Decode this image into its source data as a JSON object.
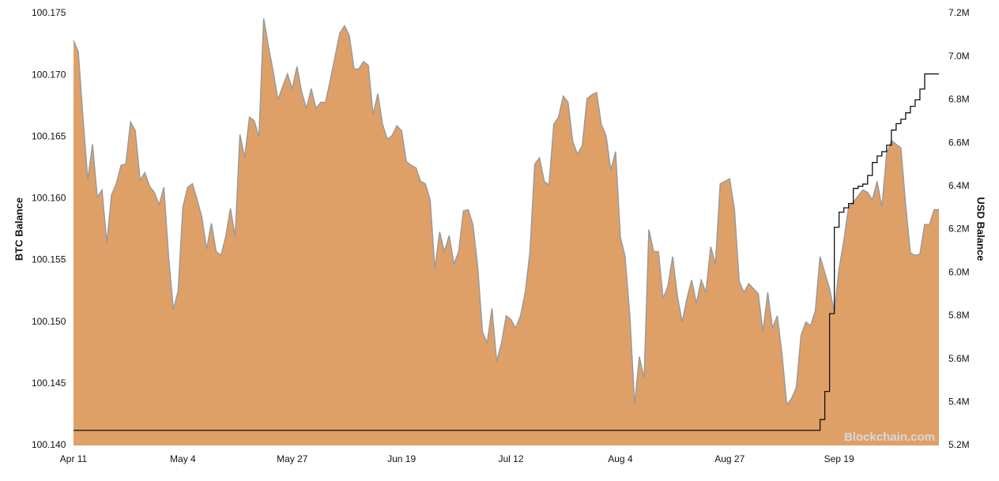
{
  "chart_data": {
    "type": "area",
    "y_label": "BTC Balance",
    "y2_label": "USD Balance",
    "watermark": "Blockchain.com",
    "categories": [
      "Apr 11",
      null,
      null,
      null,
      null,
      null,
      null,
      null,
      null,
      null,
      null,
      null,
      null,
      null,
      null,
      null,
      null,
      null,
      null,
      null,
      null,
      null,
      null,
      "May 4",
      null,
      null,
      null,
      null,
      null,
      null,
      null,
      null,
      null,
      null,
      null,
      null,
      null,
      null,
      null,
      null,
      null,
      null,
      null,
      null,
      null,
      null,
      "May 27",
      null,
      null,
      null,
      null,
      null,
      null,
      null,
      null,
      null,
      null,
      null,
      null,
      null,
      null,
      null,
      null,
      null,
      null,
      null,
      null,
      null,
      null,
      "Jun 19",
      null,
      null,
      null,
      null,
      null,
      null,
      null,
      null,
      null,
      null,
      null,
      null,
      null,
      null,
      null,
      null,
      null,
      null,
      null,
      null,
      null,
      null,
      "Jul 12",
      null,
      null,
      null,
      null,
      null,
      null,
      null,
      null,
      null,
      null,
      null,
      null,
      null,
      null,
      null,
      null,
      null,
      null,
      null,
      null,
      null,
      null,
      "Aug 4",
      null,
      null,
      null,
      null,
      null,
      null,
      null,
      null,
      null,
      null,
      null,
      null,
      null,
      null,
      null,
      null,
      null,
      null,
      null,
      null,
      null,
      null,
      "Aug 27",
      null,
      null,
      null,
      null,
      null,
      null,
      null,
      null,
      null,
      null,
      null,
      null,
      null,
      null,
      null,
      null,
      null,
      null,
      null,
      null,
      null,
      null,
      "Sep 19",
      null,
      null,
      null,
      null,
      null,
      null,
      null,
      null,
      null,
      null,
      null,
      null,
      null,
      null,
      null,
      null,
      null,
      null,
      null,
      null,
      null
    ],
    "series": [
      {
        "name": "BTC Balance",
        "kind": "area",
        "color": "#dfa068",
        "line_color": "#9a9a9a",
        "values": [
          100.1728,
          100.1719,
          100.1665,
          100.1615,
          100.1644,
          100.1601,
          100.1607,
          100.1564,
          100.1603,
          100.1612,
          100.1627,
          100.1628,
          100.1662,
          100.1655,
          100.1615,
          100.1621,
          100.161,
          100.1605,
          100.1595,
          100.1609,
          100.1553,
          100.151,
          100.1525,
          100.1593,
          100.1609,
          100.1612,
          100.1599,
          100.1585,
          100.1559,
          100.158,
          100.1557,
          100.1554,
          100.1569,
          100.1592,
          100.1569,
          100.1652,
          100.1633,
          100.1666,
          100.1663,
          100.165,
          100.1746,
          100.1723,
          100.1703,
          100.168,
          100.1691,
          100.1701,
          100.1689,
          100.1707,
          100.1686,
          100.1673,
          100.1689,
          100.1673,
          100.1678,
          100.1678,
          100.1696,
          100.1715,
          100.1734,
          100.174,
          100.1732,
          100.1705,
          100.1705,
          100.1711,
          100.1708,
          100.1668,
          100.1685,
          100.166,
          100.1648,
          100.1651,
          100.1659,
          100.1655,
          100.163,
          100.1627,
          100.1625,
          100.1614,
          100.1612,
          100.1599,
          100.1543,
          100.1573,
          100.1557,
          100.157,
          100.1547,
          100.1557,
          100.159,
          100.1591,
          100.1579,
          100.1545,
          100.1492,
          100.1483,
          100.1511,
          100.1468,
          100.1483,
          100.1505,
          100.1502,
          100.1495,
          100.1505,
          100.1524,
          100.1557,
          100.1628,
          100.1633,
          100.1614,
          100.1611,
          100.166,
          100.1666,
          100.1683,
          100.1678,
          100.1646,
          100.1636,
          100.1643,
          100.1681,
          100.1684,
          100.1686,
          100.166,
          100.1651,
          100.1623,
          100.1638,
          100.1569,
          100.1553,
          100.1505,
          100.1433,
          100.1472,
          100.1454,
          100.1575,
          100.1557,
          100.1557,
          100.1519,
          100.1529,
          100.1553,
          100.1521,
          100.15,
          100.1519,
          100.1534,
          100.1515,
          100.1534,
          100.1524,
          100.1561,
          100.1547,
          100.1612,
          100.1614,
          100.1616,
          100.1591,
          100.1533,
          100.1524,
          100.1531,
          100.1527,
          100.1523,
          100.1492,
          100.1524,
          100.1495,
          100.1505,
          100.1474,
          100.1433,
          100.1438,
          100.1447,
          100.1489,
          100.15,
          100.1497,
          100.1509,
          100.1553,
          100.154,
          100.1527,
          100.1508,
          100.1543,
          100.1566,
          100.1593,
          100.1597,
          100.1602,
          100.1607,
          100.1605,
          100.1599,
          100.1614,
          100.1593,
          100.1636,
          100.1647,
          100.1644,
          100.1641,
          100.1595,
          100.1556,
          100.1554,
          100.1555,
          100.1579,
          100.1579,
          100.1591,
          100.1591
        ]
      },
      {
        "name": "USD Balance",
        "kind": "step",
        "axis": "y2",
        "color": "#111111",
        "values": [
          5270000,
          5270000,
          5270000,
          5270000,
          5270000,
          5270000,
          5270000,
          5270000,
          5270000,
          5270000,
          5270000,
          5270000,
          5270000,
          5270000,
          5270000,
          5270000,
          5270000,
          5270000,
          5270000,
          5270000,
          5270000,
          5270000,
          5270000,
          5270000,
          5270000,
          5270000,
          5270000,
          5270000,
          5270000,
          5270000,
          5270000,
          5270000,
          5270000,
          5270000,
          5270000,
          5270000,
          5270000,
          5270000,
          5270000,
          5270000,
          5270000,
          5270000,
          5270000,
          5270000,
          5270000,
          5270000,
          5270000,
          5270000,
          5270000,
          5270000,
          5270000,
          5270000,
          5270000,
          5270000,
          5270000,
          5270000,
          5270000,
          5270000,
          5270000,
          5270000,
          5270000,
          5270000,
          5270000,
          5270000,
          5270000,
          5270000,
          5270000,
          5270000,
          5270000,
          5270000,
          5270000,
          5270000,
          5270000,
          5270000,
          5270000,
          5270000,
          5270000,
          5270000,
          5270000,
          5270000,
          5270000,
          5270000,
          5270000,
          5270000,
          5270000,
          5270000,
          5270000,
          5270000,
          5270000,
          5270000,
          5270000,
          5270000,
          5270000,
          5270000,
          5270000,
          5270000,
          5270000,
          5270000,
          5270000,
          5270000,
          5270000,
          5270000,
          5270000,
          5270000,
          5270000,
          5270000,
          5270000,
          5270000,
          5270000,
          5270000,
          5270000,
          5270000,
          5270000,
          5270000,
          5270000,
          5270000,
          5270000,
          5270000,
          5270000,
          5270000,
          5270000,
          5270000,
          5270000,
          5270000,
          5270000,
          5270000,
          5270000,
          5270000,
          5270000,
          5270000,
          5270000,
          5270000,
          5270000,
          5270000,
          5270000,
          5270000,
          5270000,
          5270000,
          5270000,
          5270000,
          5270000,
          5270000,
          5270000,
          5270000,
          5270000,
          5270000,
          5270000,
          5270000,
          5270000,
          5270000,
          5270000,
          5270000,
          5270000,
          5270000,
          5270000,
          5270000,
          5270000,
          5320000,
          5450000,
          5810000,
          6210000,
          6280000,
          6300000,
          6320000,
          6390000,
          6400000,
          6410000,
          6450000,
          6510000,
          6540000,
          6560000,
          6590000,
          6660000,
          6690000,
          6710000,
          6740000,
          6770000,
          6800000,
          6850000,
          6920000,
          6920000,
          6920000,
          6920000
        ]
      }
    ],
    "ylim": [
      100.14,
      100.175
    ],
    "yticks": [
      {
        "value": 100.14,
        "label": "100.140"
      },
      100.145,
      {
        "value": 100.15,
        "label": "100.150"
      },
      100.155,
      {
        "value": 100.16,
        "label": "100.160"
      },
      100.165,
      {
        "value": 100.17,
        "label": "100.170"
      },
      100.175
    ],
    "y2lim": [
      5200000,
      7200000
    ],
    "y2ticks": [
      {
        "value": 5200000,
        "label": "5.2M"
      },
      {
        "value": 5400000,
        "label": "5.4M"
      },
      {
        "value": 5600000,
        "label": "5.6M"
      },
      {
        "value": 5800000,
        "label": "5.8M"
      },
      {
        "value": 6000000,
        "label": "6.0M"
      },
      {
        "value": 6200000,
        "label": "6.2M"
      },
      {
        "value": 6400000,
        "label": "6.4M"
      },
      {
        "value": 6600000,
        "label": "6.6M"
      },
      {
        "value": 6800000,
        "label": "6.8M"
      },
      {
        "value": 7000000,
        "label": "7.0M"
      },
      {
        "value": 7200000,
        "label": "7.2M"
      }
    ],
    "grid": false
  }
}
